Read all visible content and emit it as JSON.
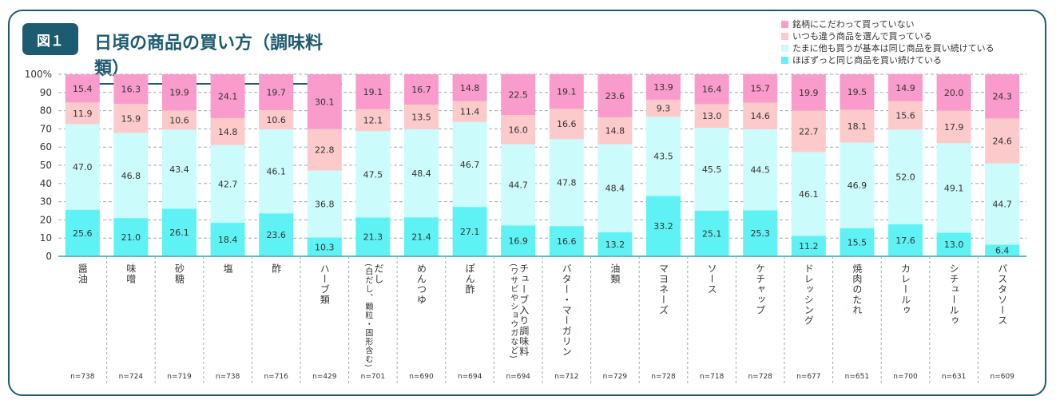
{
  "header": {
    "badge": "図１",
    "title": "日頃の商品の買い方（調味料類）"
  },
  "chart_data": {
    "type": "bar",
    "stacked": true,
    "title": "日頃の商品の買い方（調味料類）",
    "ylim": [
      0,
      100
    ],
    "yticks": [
      "0",
      "10",
      "20",
      "30",
      "40",
      "50",
      "60",
      "70",
      "80",
      "90",
      "100%"
    ],
    "grid": true,
    "legend_position": "top-right",
    "categories": [
      {
        "label": "醤油"
      },
      {
        "label": "味噌"
      },
      {
        "label": "砂糖"
      },
      {
        "label": "塩"
      },
      {
        "label": "酢"
      },
      {
        "label": "ハーブ類"
      },
      {
        "label": "だし",
        "sub": "(白だし、顆粒・固形含む)"
      },
      {
        "label": "めんつゆ"
      },
      {
        "label": "ぽん酢"
      },
      {
        "label": "チューブ入り調味料",
        "sub": "(ワサビやショウガなど)"
      },
      {
        "label": "バター・マーガリン"
      },
      {
        "label": "油類"
      },
      {
        "label": "マヨネーズ"
      },
      {
        "label": "ソース"
      },
      {
        "label": "ケチャップ"
      },
      {
        "label": "ドレッシング"
      },
      {
        "label": "焼肉のたれ"
      },
      {
        "label": "カレールゥ"
      },
      {
        "label": "シチュールゥ"
      },
      {
        "label": "パスタソース"
      }
    ],
    "n": [
      "n=738",
      "n=724",
      "n=719",
      "n=738",
      "n=716",
      "n=429",
      "n=701",
      "n=690",
      "n=694",
      "n=694",
      "n=712",
      "n=729",
      "n=728",
      "n=718",
      "n=728",
      "n=677",
      "n=651",
      "n=700",
      "n=631",
      "n=609"
    ],
    "series": [
      {
        "name": "ほぼずっと同じ商品を買い続けている",
        "color": "#5ef2f4",
        "values": [
          25.6,
          21.0,
          26.1,
          18.4,
          23.6,
          10.3,
          21.3,
          21.4,
          27.1,
          16.9,
          16.6,
          13.2,
          33.2,
          25.1,
          25.3,
          11.2,
          15.5,
          17.6,
          13.0,
          6.4
        ]
      },
      {
        "name": "たまに他も買うが基本は同じ商品を買い続けている",
        "color": "#ccfbfb",
        "values": [
          47.0,
          46.8,
          43.4,
          42.7,
          46.1,
          36.8,
          47.5,
          48.4,
          46.7,
          44.7,
          47.8,
          48.4,
          43.5,
          45.5,
          44.5,
          46.1,
          46.9,
          52.0,
          49.1,
          44.7
        ]
      },
      {
        "name": "いつも違う商品を選んで買っている",
        "color": "#fccacb",
        "values": [
          11.9,
          15.9,
          10.6,
          14.8,
          10.6,
          22.8,
          12.1,
          13.5,
          11.4,
          16.0,
          16.6,
          14.8,
          9.3,
          13.0,
          14.6,
          22.7,
          18.1,
          15.6,
          17.9,
          24.6
        ]
      },
      {
        "name": "銘柄にこだわって買っていない",
        "color": "#f99ccb",
        "values": [
          15.4,
          16.3,
          19.9,
          24.1,
          19.7,
          30.1,
          19.1,
          16.7,
          14.8,
          22.5,
          19.1,
          23.6,
          13.9,
          16.4,
          15.7,
          19.9,
          19.5,
          14.9,
          20.0,
          24.3
        ]
      }
    ]
  }
}
